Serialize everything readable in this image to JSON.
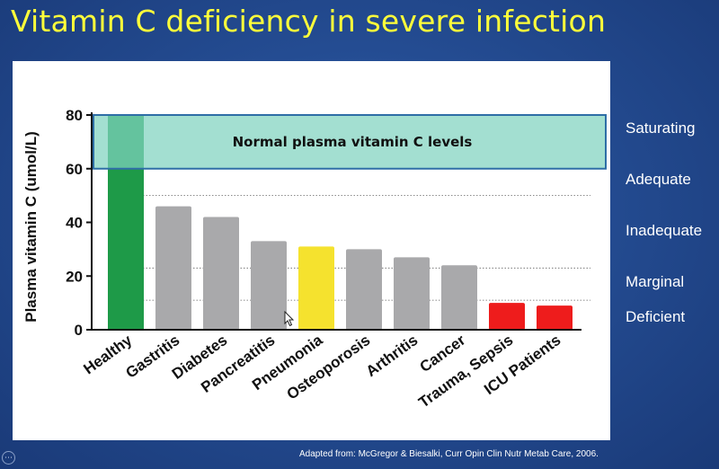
{
  "slide": {
    "title": "Vitamin C deficiency in severe infection",
    "source_note": "Adapted from: McGregor & Biesalki, Curr Opin Clin Nutr Metab Care, 2006.",
    "nav_glyph": "⋯"
  },
  "levels": [
    "Saturating",
    "Adequate",
    "Inadequate",
    "Marginal",
    "Deficient"
  ],
  "chart_data": {
    "type": "bar",
    "title": "",
    "xlabel": "",
    "ylabel": "Plasma vitamin C (umol/L)",
    "ylim": [
      0,
      80
    ],
    "yticks": [
      0,
      20,
      40,
      60,
      80
    ],
    "grid": false,
    "categories": [
      "Healthy",
      "Gastritis",
      "Diabetes",
      "Pancreatitis",
      "Pneumonia",
      "Osteoporosis",
      "Arthritis",
      "Cancer",
      "Trauma, Sepsis",
      "ICU Patients"
    ],
    "values": [
      80,
      46,
      42,
      33,
      31,
      30,
      27,
      24,
      10,
      9
    ],
    "bar_colors": [
      "#1e9a48",
      "#a9a9ab",
      "#a9a9ab",
      "#a9a9ab",
      "#f5e22e",
      "#a9a9ab",
      "#a9a9ab",
      "#a9a9ab",
      "#ee1c1c",
      "#ee1c1c"
    ],
    "normal_band": {
      "label": "Normal plasma vitamin C levels",
      "range": [
        60,
        80
      ],
      "color": "#7fd3bf",
      "edge": "#2e6ea6"
    },
    "reference_lines": [
      50,
      23,
      11
    ]
  }
}
